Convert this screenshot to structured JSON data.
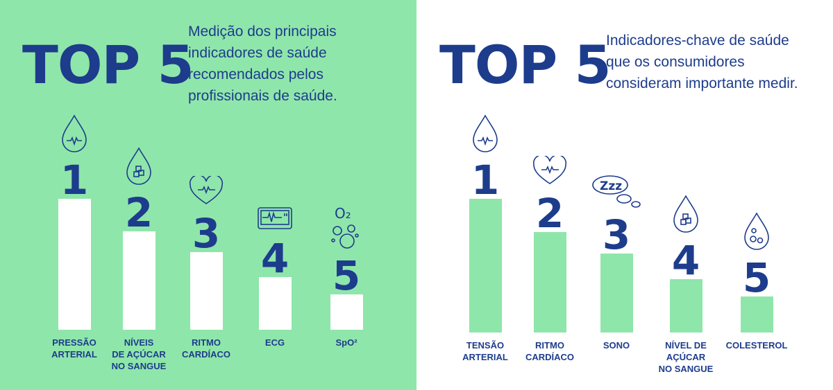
{
  "chart_data": [
    {
      "type": "bar",
      "title": "TOP 5",
      "subtitle": [
        "Medição dos principais",
        "indicadores de saúde",
        "recomendados pelos",
        "profissionais de saúde."
      ],
      "categories": [
        [
          "PRESSÃO",
          "ARTERIAL"
        ],
        [
          "NÍVEIS",
          "DE AÇÚCAR",
          "NO SANGUE"
        ],
        [
          "RITMO",
          "CARDÍACO"
        ],
        [
          "ECG"
        ],
        [
          "SpO²"
        ]
      ],
      "ranks": [
        "1",
        "2",
        "3",
        "4",
        "5"
      ],
      "values": [
        100,
        75,
        59,
        40,
        27
      ],
      "value_unit": "relative %",
      "icons": [
        "drop-pulse-icon",
        "drop-sugar-cubes-icon",
        "heart-pulse-icon",
        "ecg-monitor-icon",
        "oxygen-bubbles-icon"
      ],
      "icon_text": [
        "",
        "",
        "",
        "",
        "O₂"
      ],
      "bar_color": "#ffffff",
      "background": "#8fe6aa"
    },
    {
      "type": "bar",
      "title": "TOP 5",
      "subtitle": [
        "Indicadores-chave de saúde",
        "que os consumidores",
        "consideram importante medir."
      ],
      "categories": [
        [
          "TENSÃO",
          "ARTERIAL"
        ],
        [
          "RITMO",
          "CARDÍACO"
        ],
        [
          "SONO"
        ],
        [
          "NÍVEL DE",
          "AÇÚCAR",
          "NO SANGUE"
        ],
        [
          "COLESTEROL"
        ]
      ],
      "ranks": [
        "1",
        "2",
        "3",
        "4",
        "5"
      ],
      "values": [
        100,
        75,
        59,
        40,
        27
      ],
      "value_unit": "relative %",
      "icons": [
        "drop-pulse-icon",
        "heart-pulse-icon",
        "sleep-zzz-icon",
        "drop-sugar-cubes-icon",
        "drop-cholesterol-icon"
      ],
      "icon_text": [
        "",
        "",
        "Zzz",
        "",
        ""
      ],
      "bar_color": "#8fe6aa",
      "background": "#ffffff"
    }
  ]
}
